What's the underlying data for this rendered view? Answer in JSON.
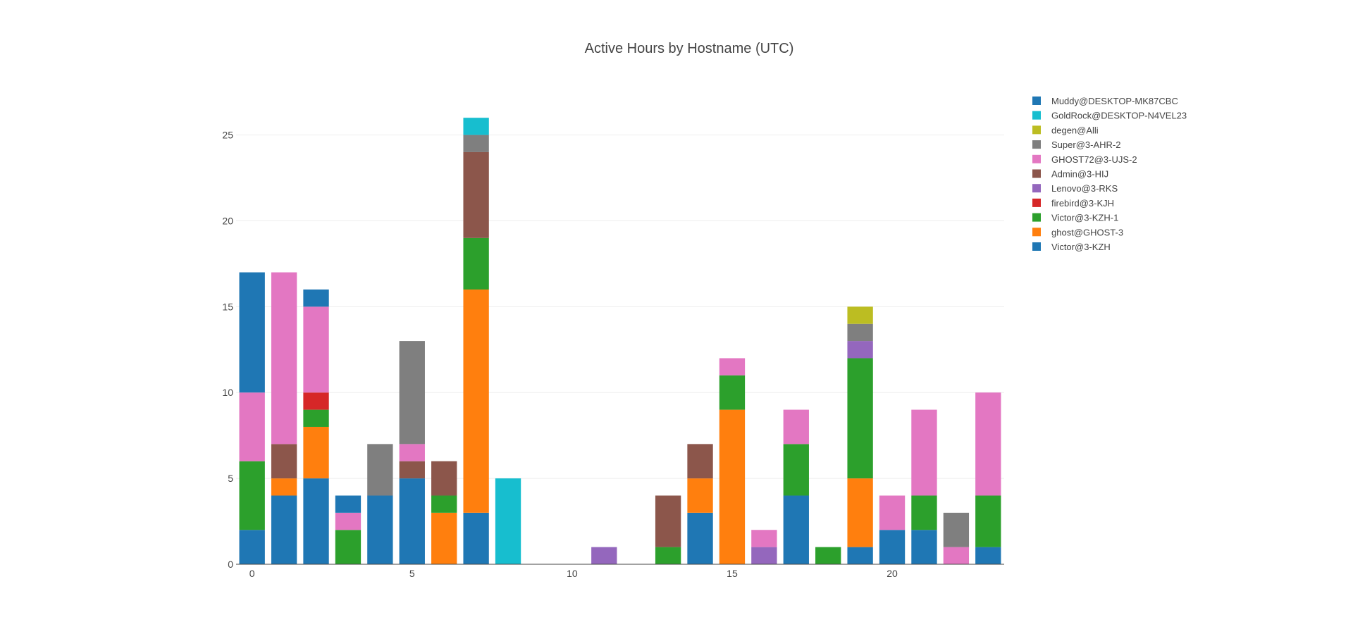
{
  "chart_data": {
    "type": "bar",
    "stacked": true,
    "title": "Active Hours by Hostname (UTC)",
    "xlabel": "",
    "ylabel": "",
    "categories": [
      0,
      1,
      2,
      3,
      4,
      5,
      6,
      7,
      8,
      9,
      10,
      11,
      12,
      13,
      14,
      15,
      16,
      17,
      18,
      19,
      20,
      21,
      22,
      23
    ],
    "xlim": [
      -0.5,
      23.5
    ],
    "ylim": [
      0,
      26.5
    ],
    "x_ticks": [
      0,
      5,
      10,
      15,
      20
    ],
    "y_ticks": [
      0,
      5,
      10,
      15,
      20,
      25
    ],
    "grid": true,
    "legend_position": "top-right",
    "series": [
      {
        "name": "Victor@3-KZH",
        "color": "#1f77b4",
        "values": [
          2,
          4,
          5,
          0,
          4,
          5,
          0,
          3,
          0,
          0,
          0,
          0,
          0,
          0,
          3,
          0,
          0,
          4,
          0,
          1,
          2,
          2,
          0,
          1
        ]
      },
      {
        "name": "ghost@GHOST-3",
        "color": "#ff7f0e",
        "values": [
          0,
          1,
          3,
          0,
          0,
          0,
          3,
          13,
          0,
          0,
          0,
          0,
          0,
          0,
          2,
          9,
          0,
          0,
          0,
          4,
          0,
          0,
          0,
          0
        ]
      },
      {
        "name": "Victor@3-KZH-1",
        "color": "#2ca02c",
        "values": [
          4,
          0,
          1,
          2,
          0,
          0,
          1,
          3,
          0,
          0,
          0,
          0,
          0,
          1,
          0,
          2,
          0,
          3,
          1,
          7,
          0,
          2,
          0,
          3
        ]
      },
      {
        "name": "firebird@3-KJH",
        "color": "#d62728",
        "values": [
          0,
          0,
          1,
          0,
          0,
          0,
          0,
          0,
          0,
          0,
          0,
          0,
          0,
          0,
          0,
          0,
          0,
          0,
          0,
          0,
          0,
          0,
          0,
          0
        ]
      },
      {
        "name": "Lenovo@3-RKS",
        "color": "#9467bd",
        "values": [
          0,
          0,
          0,
          0,
          0,
          0,
          0,
          0,
          0,
          0,
          0,
          1,
          0,
          0,
          0,
          0,
          1,
          0,
          0,
          1,
          0,
          0,
          0,
          0
        ]
      },
      {
        "name": "Admin@3-HIJ",
        "color": "#8c564b",
        "values": [
          0,
          2,
          0,
          0,
          0,
          1,
          2,
          5,
          0,
          0,
          0,
          0,
          0,
          3,
          2,
          0,
          0,
          0,
          0,
          0,
          0,
          0,
          0,
          0
        ]
      },
      {
        "name": "GHOST72@3-UJS-2",
        "color": "#e377c2",
        "values": [
          4,
          10,
          5,
          1,
          0,
          1,
          0,
          0,
          0,
          0,
          0,
          0,
          0,
          0,
          0,
          1,
          1,
          2,
          0,
          0,
          2,
          5,
          1,
          6
        ]
      },
      {
        "name": "Super@3-AHR-2",
        "color": "#7f7f7f",
        "values": [
          0,
          0,
          0,
          0,
          3,
          6,
          0,
          1,
          0,
          0,
          0,
          0,
          0,
          0,
          0,
          0,
          0,
          0,
          0,
          1,
          0,
          0,
          2,
          0
        ]
      },
      {
        "name": "degen@Alli",
        "color": "#bcbd22",
        "values": [
          0,
          0,
          0,
          0,
          0,
          0,
          0,
          0,
          0,
          0,
          0,
          0,
          0,
          0,
          0,
          0,
          0,
          0,
          0,
          1,
          0,
          0,
          0,
          0
        ]
      },
      {
        "name": "GoldRock@DESKTOP-N4VEL23",
        "color": "#17becf",
        "values": [
          0,
          0,
          0,
          0,
          0,
          0,
          0,
          1,
          5,
          0,
          0,
          0,
          0,
          0,
          0,
          0,
          0,
          0,
          0,
          0,
          0,
          0,
          0,
          0
        ]
      },
      {
        "name": "Muddy@DESKTOP-MK87CBC",
        "color": "#1f77b4",
        "values": [
          7,
          0,
          1,
          1,
          0,
          0,
          0,
          0,
          0,
          0,
          0,
          0,
          0,
          0,
          0,
          0,
          0,
          0,
          0,
          0,
          0,
          0,
          0,
          0
        ]
      }
    ]
  }
}
